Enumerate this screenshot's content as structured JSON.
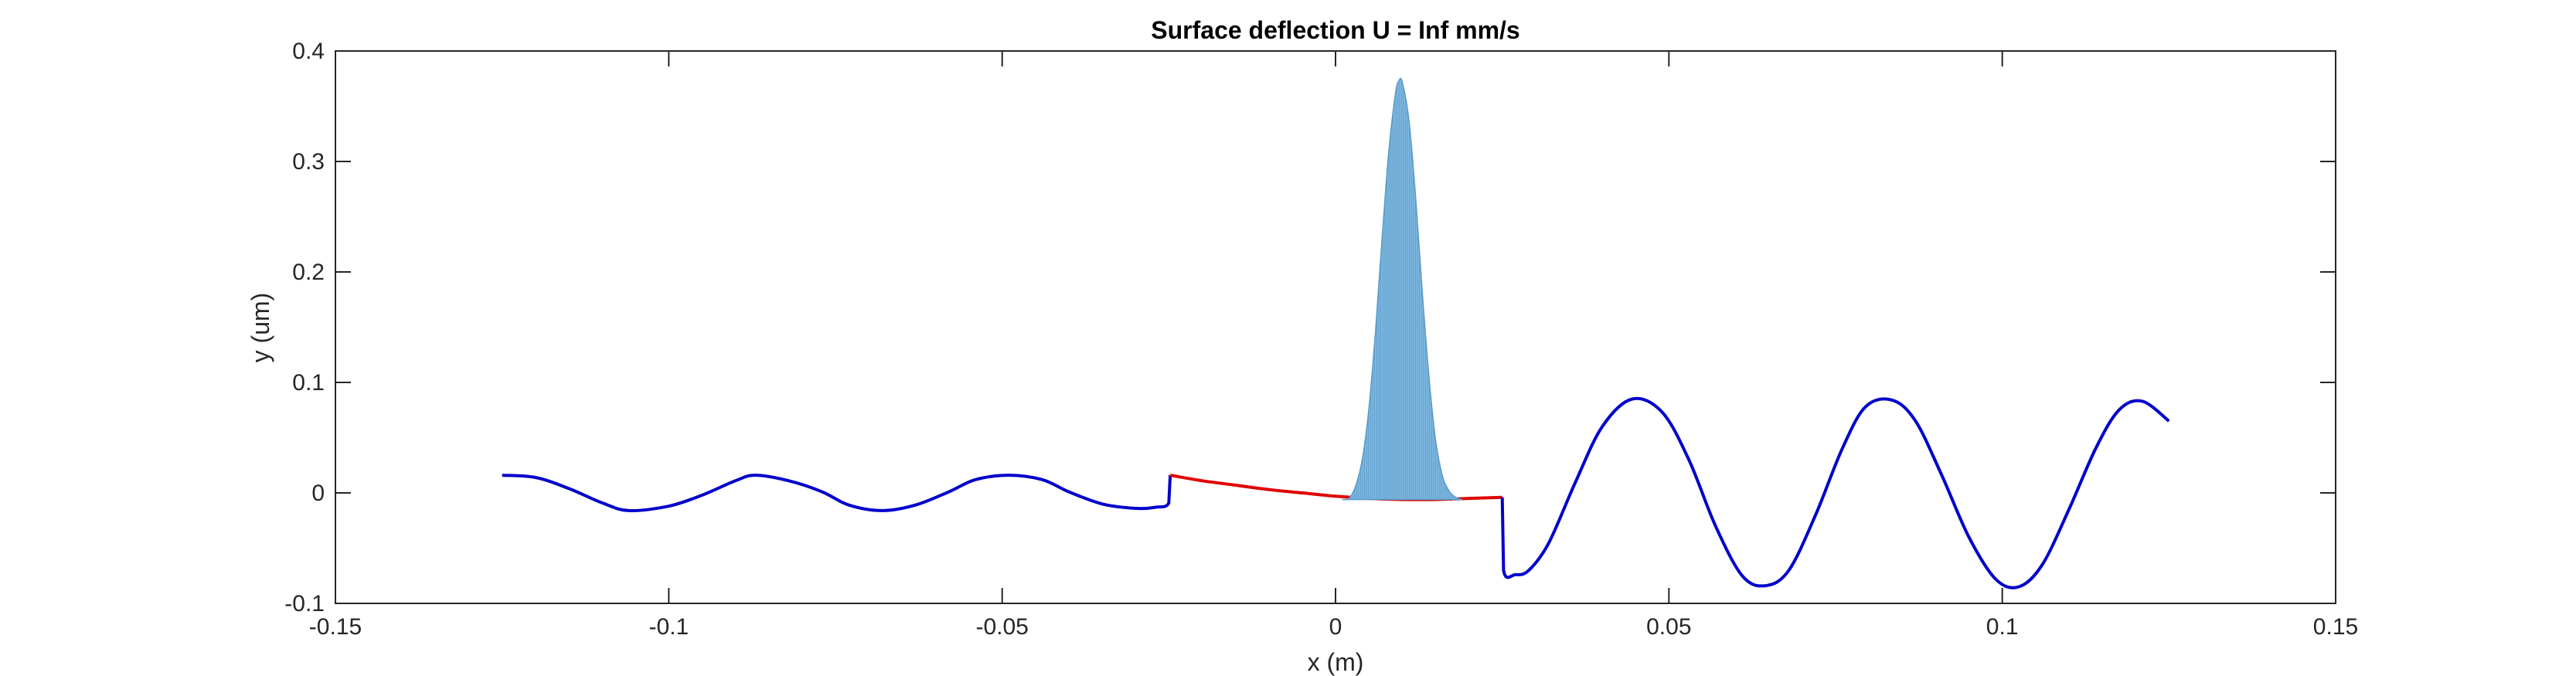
{
  "chart_data": {
    "type": "line",
    "title": "Surface deflection   U = Inf mm/s",
    "xlabel": "x (m)",
    "ylabel": "y (um)",
    "xlim": [
      -0.15,
      0.15
    ],
    "ylim": [
      -0.1,
      0.4
    ],
    "xticks": [
      -0.15,
      -0.1,
      -0.05,
      0,
      0.05,
      0.1,
      0.15
    ],
    "xtick_labels": [
      "-0.15",
      "-0.1",
      "-0.05",
      "0",
      "0.05",
      "0.1",
      "0.15"
    ],
    "yticks": [
      -0.1,
      0,
      0.1,
      0.2,
      0.3,
      0.4
    ],
    "ytick_labels": [
      "-0.1",
      "0",
      "0.1",
      "0.2",
      "0.3",
      "0.4"
    ],
    "grid": false,
    "legend": "none",
    "series": [
      {
        "color": "#0000cc",
        "style": "line",
        "x": [
          -0.125,
          -0.12,
          -0.115,
          -0.11,
          -0.106,
          -0.1,
          -0.095,
          -0.09,
          -0.087,
          -0.082,
          -0.077,
          -0.073,
          -0.068,
          -0.063,
          -0.058,
          -0.054,
          -0.049,
          -0.044,
          -0.04,
          -0.035,
          -0.03,
          -0.027,
          -0.025,
          -0.0248
        ],
        "y": [
          0.016,
          0.014,
          0.004,
          -0.009,
          -0.016,
          -0.012,
          -0.002,
          0.011,
          0.016,
          0.011,
          0.001,
          -0.011,
          -0.016,
          -0.011,
          0.001,
          0.012,
          0.016,
          0.012,
          0.001,
          -0.01,
          -0.014,
          -0.013,
          -0.009,
          0.016
        ]
      },
      {
        "color": "#e00000",
        "style": "line",
        "x": [
          -0.0248,
          -0.02,
          -0.015,
          -0.01,
          -0.005,
          0,
          0.005,
          0.01,
          0.015,
          0.02,
          0.025
        ],
        "y": [
          0.016,
          0.011,
          0.007,
          0.003,
          0,
          -0.003,
          -0.005,
          -0.006,
          -0.006,
          -0.005,
          -0.004
        ]
      },
      {
        "color": "#0000cc",
        "style": "line",
        "x": [
          0.025,
          0.0252,
          0.027,
          0.029,
          0.032,
          0.036,
          0.04,
          0.0445,
          0.049,
          0.053,
          0.057,
          0.061,
          0.0645,
          0.068,
          0.072,
          0.076,
          0.0795,
          0.0835,
          0.087,
          0.091,
          0.095,
          0.099,
          0.1025,
          0.106,
          0.11,
          0.114,
          0.1175,
          0.121,
          0.125
        ],
        "y": [
          -0.004,
          -0.07,
          -0.074,
          -0.07,
          -0.045,
          0.01,
          0.06,
          0.085,
          0.073,
          0.03,
          -0.03,
          -0.075,
          -0.084,
          -0.07,
          -0.02,
          0.04,
          0.078,
          0.084,
          0.065,
          0.015,
          -0.04,
          -0.078,
          -0.085,
          -0.065,
          -0.015,
          0.04,
          0.075,
          0.083,
          0.065
        ]
      },
      {
        "color": "#7fb8e0",
        "style": "area",
        "x": [
          0.001,
          0.002,
          0.003,
          0.004,
          0.005,
          0.006,
          0.007,
          0.008,
          0.009,
          0.0095,
          0.01,
          0.011,
          0.012,
          0.013,
          0.014,
          0.015,
          0.016,
          0.017,
          0.018,
          0.019
        ],
        "y": [
          -0.006,
          -0.005,
          0.006,
          0.03,
          0.076,
          0.147,
          0.232,
          0.31,
          0.362,
          0.373,
          0.372,
          0.338,
          0.269,
          0.183,
          0.106,
          0.048,
          0.016,
          0.002,
          -0.004,
          -0.006
        ]
      }
    ]
  }
}
